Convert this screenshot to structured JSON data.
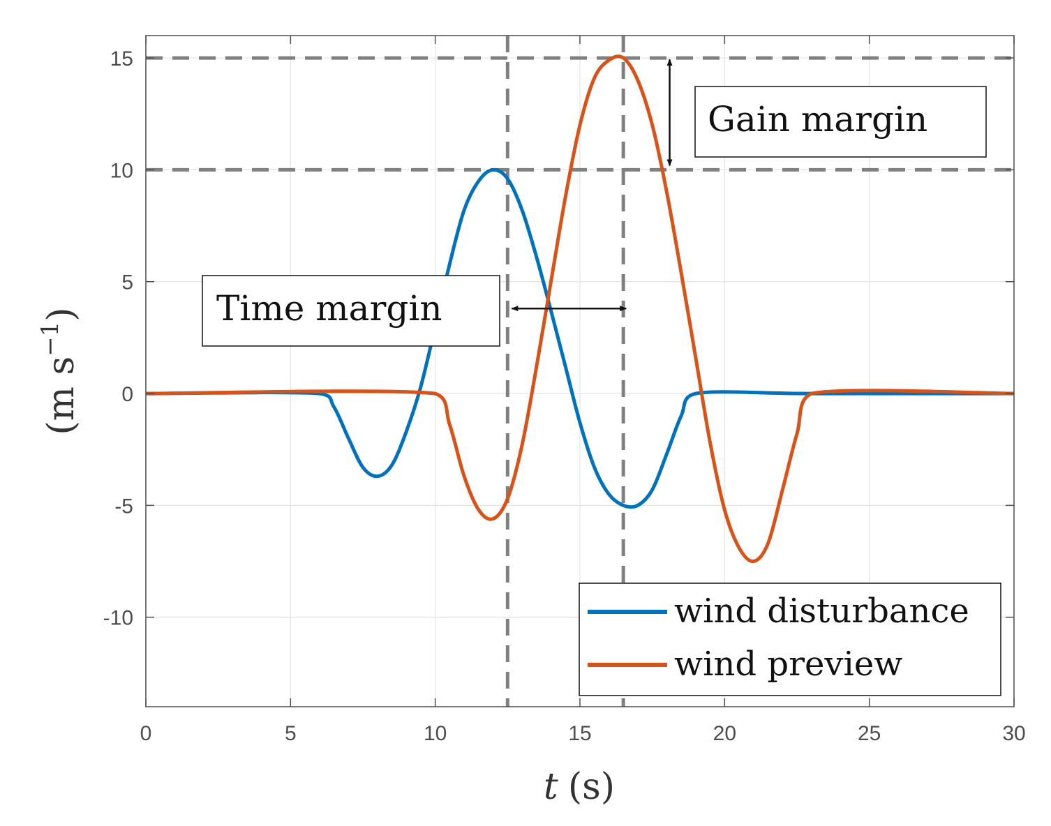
{
  "chart_data": {
    "type": "line",
    "xlabel": "t (s)",
    "xlabel_var": "t",
    "xlabel_unit": "(s)",
    "ylabel": "(m s⁻¹)",
    "ylabel_open": "(m s",
    "ylabel_exp": "−1",
    "ylabel_close": ")",
    "xlim": [
      0,
      30
    ],
    "ylim": [
      -14,
      16
    ],
    "xticks": [
      0,
      5,
      10,
      15,
      20,
      25,
      30
    ],
    "yticks": [
      -10,
      -5,
      0,
      5,
      10,
      15
    ],
    "grid": true,
    "legend_position": "bottom-right",
    "series": [
      {
        "name": "wind disturbance",
        "color": "#0072BD",
        "x": [
          0,
          6,
          6.5,
          7,
          7.5,
          8,
          8.5,
          9,
          9.5,
          10,
          10.5,
          11,
          11.5,
          12,
          12.5,
          13,
          13.5,
          14,
          14.5,
          15,
          15.5,
          16,
          16.5,
          17,
          17.5,
          18,
          18.5,
          19,
          23,
          30
        ],
        "y": [
          0,
          0,
          -0.6,
          -2.0,
          -3.3,
          -3.7,
          -3.2,
          -1.7,
          0.3,
          3.0,
          5.8,
          8.2,
          9.5,
          10.0,
          9.6,
          8.2,
          6.1,
          3.7,
          1.2,
          -1.3,
          -3.3,
          -4.5,
          -5.0,
          -5.0,
          -4.3,
          -2.7,
          -1.0,
          0,
          0,
          0
        ]
      },
      {
        "name": "wind preview",
        "color": "#D95319",
        "x": [
          0,
          10,
          10.5,
          11,
          11.5,
          12,
          12.5,
          13,
          13.5,
          14,
          14.5,
          15,
          15.5,
          16,
          16.5,
          17,
          17.5,
          18,
          18.5,
          19,
          19.5,
          20,
          20.5,
          21,
          21.5,
          22,
          22.5,
          23,
          30
        ],
        "y": [
          0,
          0,
          -1.4,
          -3.7,
          -5.2,
          -5.6,
          -4.7,
          -2.3,
          1.2,
          5.0,
          8.8,
          12.0,
          14.1,
          14.9,
          15.0,
          14.0,
          12.0,
          9.0,
          5.4,
          1.6,
          -2.2,
          -5.2,
          -6.9,
          -7.5,
          -6.7,
          -4.3,
          -1.8,
          0,
          0
        ]
      }
    ],
    "reference_lines": {
      "horizontal": [
        15,
        10
      ],
      "vertical": [
        12.5,
        16.5
      ],
      "color": "#808080"
    },
    "annotations": [
      {
        "text": "Gain margin",
        "arrow_x": 18.1,
        "arrow_y1": 15,
        "arrow_y2": 10
      },
      {
        "text": "Time margin",
        "arrow_y": 3.8,
        "arrow_x1": 12.5,
        "arrow_x2": 16.5
      }
    ]
  }
}
